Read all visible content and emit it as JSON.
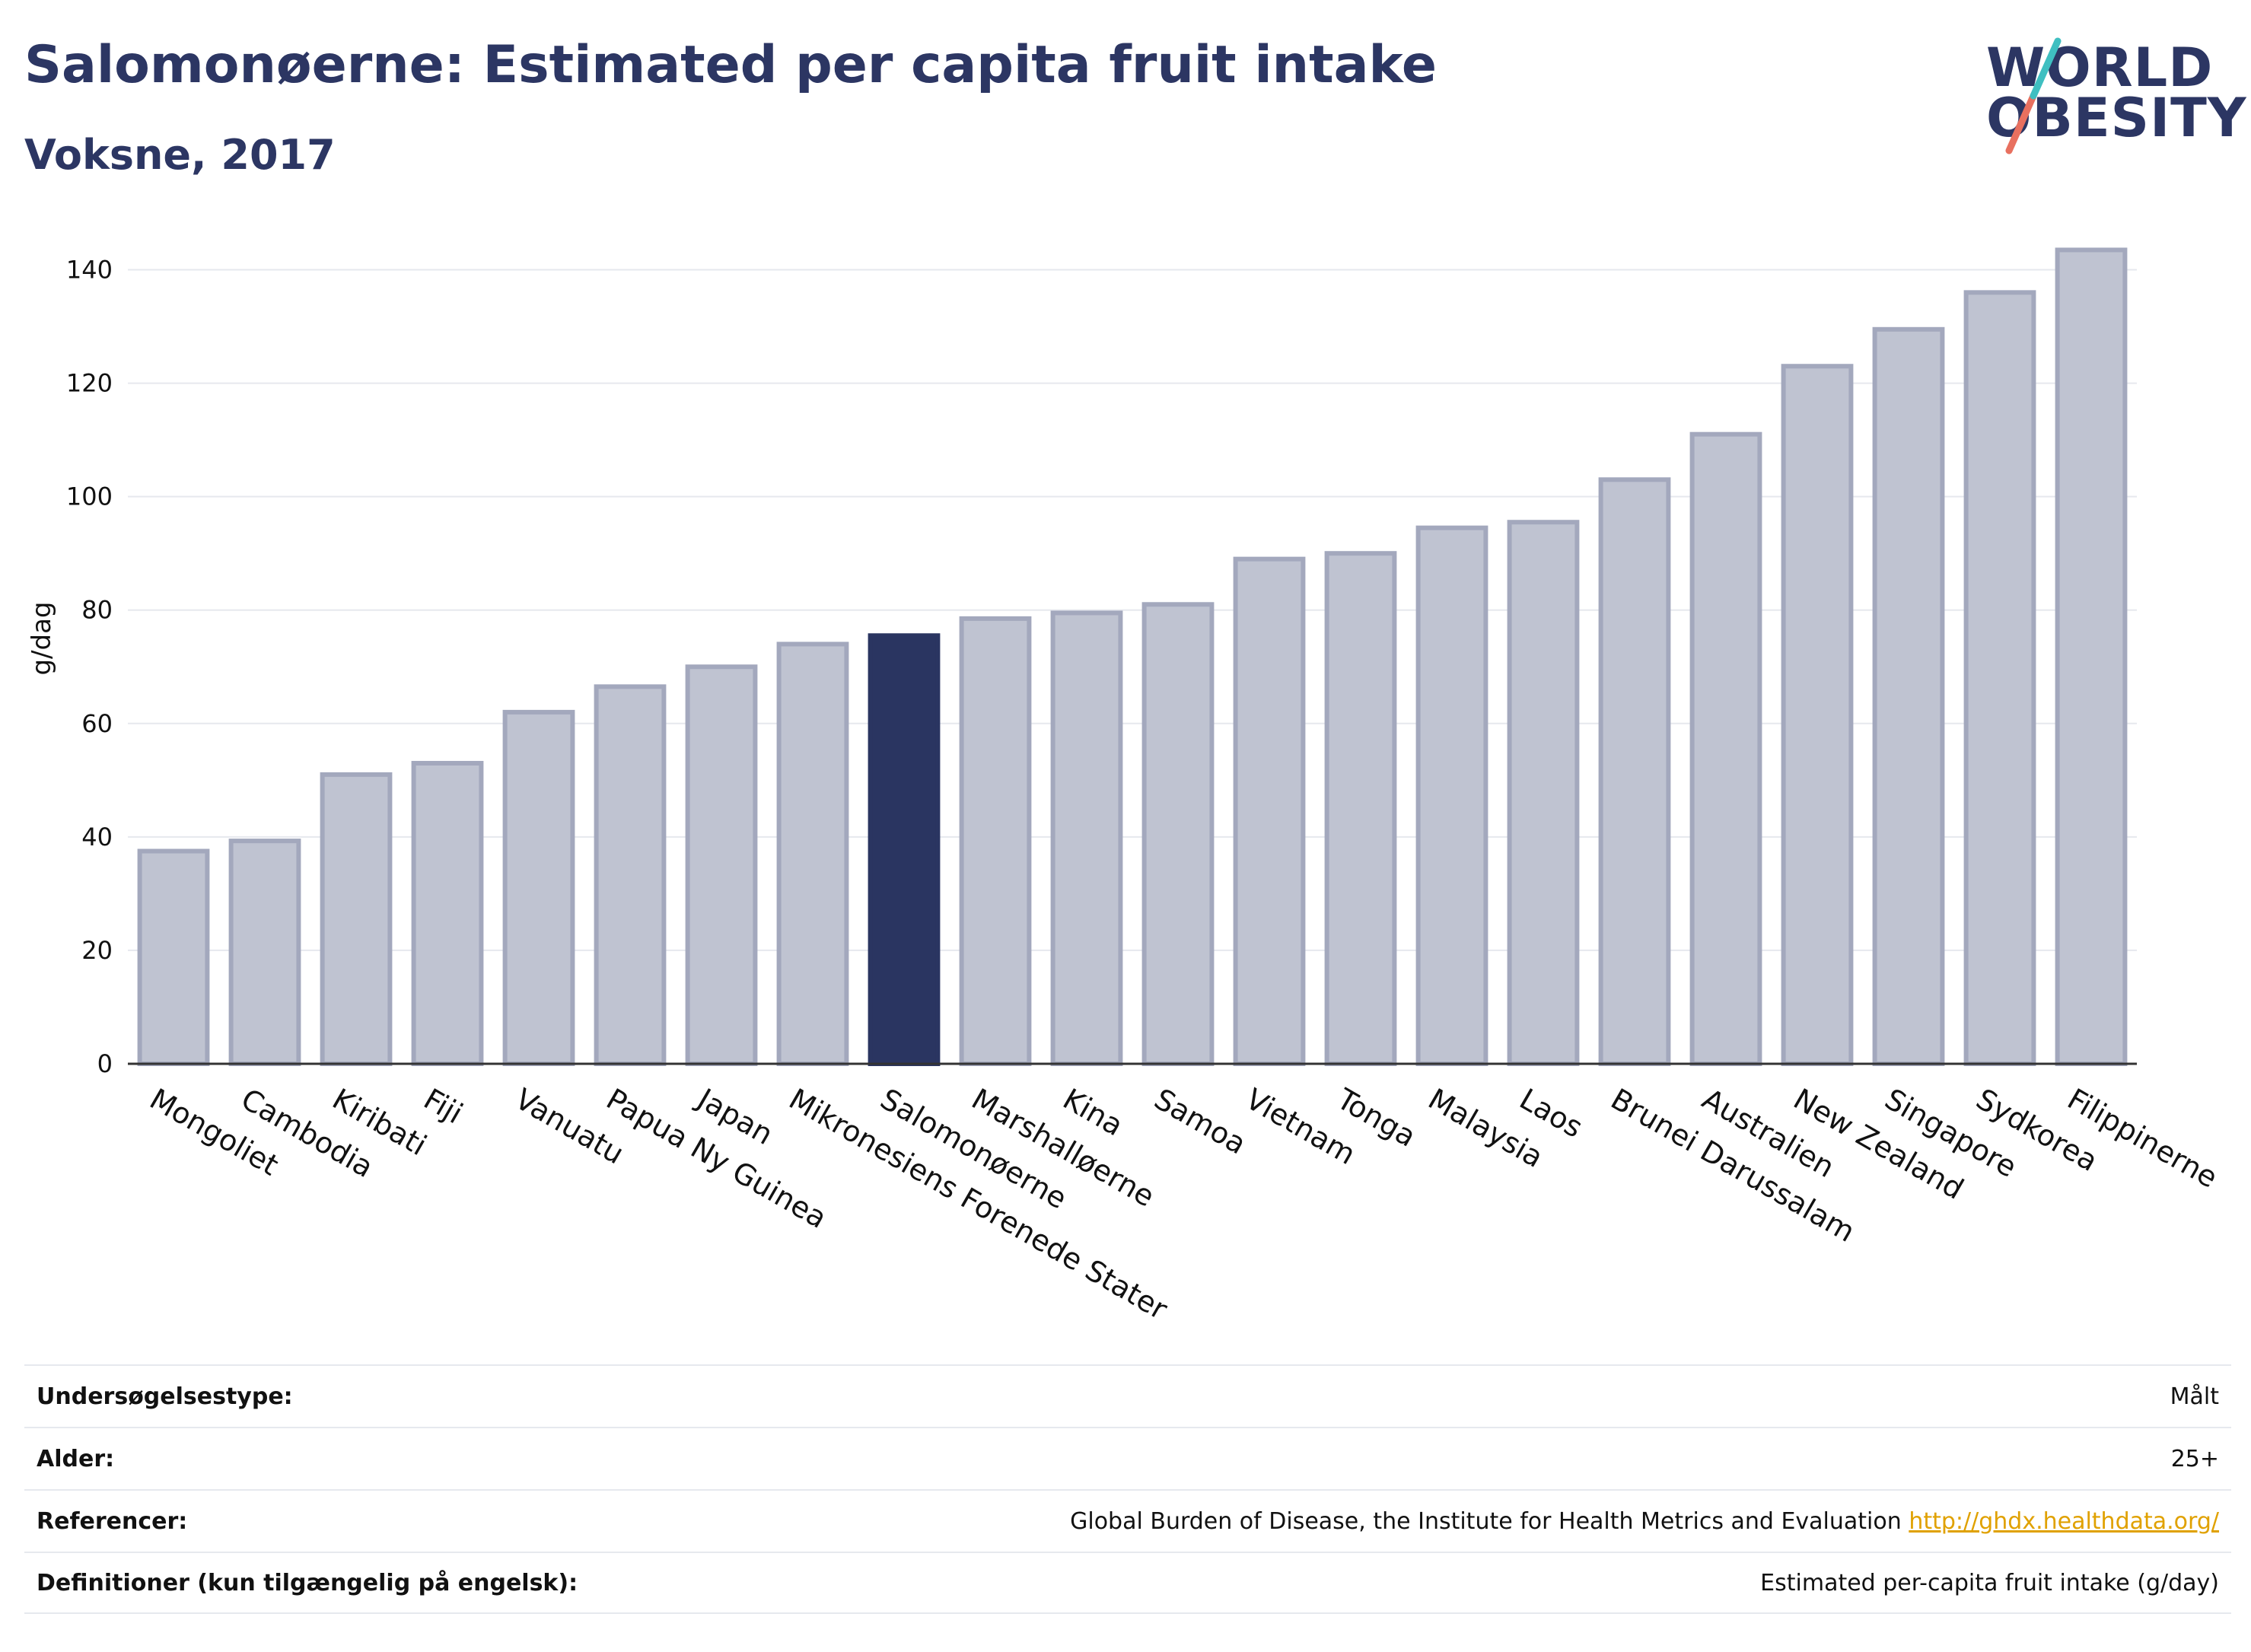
{
  "header": {
    "title": "Salomonøerne: Estimated per capita fruit intake",
    "subtitle": "Voksne, 2017"
  },
  "logo": {
    "line1": "WORLD",
    "line2": "OBESITY"
  },
  "colors": {
    "highlight": "#2a3561",
    "bar": "#bfc3d1",
    "bar_border": "#a3a8bd",
    "accent_teal": "#3fbfc1",
    "accent_coral": "#e8705f"
  },
  "chart_data": {
    "type": "bar",
    "categories": [
      "Mongoliet",
      "Cambodia",
      "Kiribati",
      "Fiji",
      "Vanuatu",
      "Papua Ny Guinea",
      "Japan",
      "Mikronesiens Forenede Stater",
      "Salomonøerne",
      "Marshalløerne",
      "Kina",
      "Samoa",
      "Vietnam",
      "Tonga",
      "Malaysia",
      "Laos",
      "Brunei Darussalam",
      "Australien",
      "New Zealand",
      "Singapore",
      "Sydkorea",
      "Filippinerne"
    ],
    "values": [
      37.5,
      39.3,
      51,
      53,
      62,
      66.5,
      70,
      74,
      75.5,
      78.5,
      79.5,
      81,
      89,
      90,
      94.5,
      95.5,
      103,
      111,
      123,
      129.5,
      136,
      143.5
    ],
    "highlight": "Salomonøerne",
    "ylabel": "g/dag",
    "ylim": [
      0,
      150
    ],
    "yticks": [
      0,
      20,
      40,
      60,
      80,
      100,
      120,
      140
    ],
    "grid": true
  },
  "meta": [
    {
      "label": "Undersøgelsestype:",
      "value": "Målt"
    },
    {
      "label": "Alder:",
      "value": "25+"
    },
    {
      "label": "Referencer:",
      "value": "Global Burden of Disease, the Institute for Health Metrics and Evaluation",
      "link": "http://ghdx.healthdata.org/"
    },
    {
      "label": "Definitioner (kun tilgængelig på engelsk):",
      "value": "Estimated per-capita fruit intake (g/day)"
    }
  ]
}
